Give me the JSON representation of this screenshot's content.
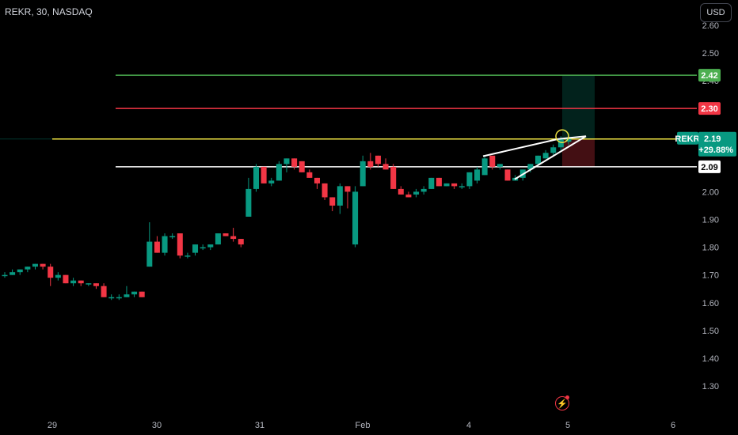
{
  "header": {
    "title": "REKR, 30, NASDAQ",
    "currency": "USD"
  },
  "colors": {
    "up": "#089981",
    "down": "#f23645",
    "green_line": "#4caf50",
    "red_line": "#f23645",
    "yellow_line": "#f0e442",
    "white_line": "#ffffff"
  },
  "price_axis": {
    "ticks": [
      "2.60",
      "2.50",
      "2.40",
      "2.30",
      "2.20",
      "2.10",
      "2.00",
      "1.90",
      "1.80",
      "1.70",
      "1.60",
      "1.50",
      "1.40",
      "1.30"
    ]
  },
  "time_axis": {
    "ticks": [
      "29",
      "30",
      "31",
      "Feb",
      "4",
      "5",
      "6"
    ]
  },
  "levels": {
    "target": "2.42",
    "stop": "2.30",
    "current_symbol": "REKR",
    "current_price": "2.19",
    "current_change": "+29.88%",
    "support": "2.09"
  },
  "chart_data": {
    "type": "candlestick",
    "symbol": "REKR",
    "interval": "30",
    "exchange": "NASDAQ",
    "ylim": [
      1.27,
      2.62
    ],
    "candles": [
      [
        1.7,
        1.71,
        1.69,
        1.7
      ],
      [
        1.7,
        1.72,
        1.7,
        1.71
      ],
      [
        1.71,
        1.72,
        1.7,
        1.72
      ],
      [
        1.72,
        1.73,
        1.71,
        1.73
      ],
      [
        1.73,
        1.74,
        1.72,
        1.74
      ],
      [
        1.74,
        1.74,
        1.72,
        1.73
      ],
      [
        1.73,
        1.74,
        1.66,
        1.69
      ],
      [
        1.69,
        1.71,
        1.68,
        1.7
      ],
      [
        1.7,
        1.7,
        1.67,
        1.67
      ],
      [
        1.67,
        1.69,
        1.66,
        1.68
      ],
      [
        1.68,
        1.68,
        1.66,
        1.67
      ],
      [
        1.67,
        1.67,
        1.66,
        1.67
      ],
      [
        1.67,
        1.67,
        1.65,
        1.66
      ],
      [
        1.66,
        1.67,
        1.62,
        1.62
      ],
      [
        1.62,
        1.63,
        1.61,
        1.62
      ],
      [
        1.62,
        1.63,
        1.61,
        1.62
      ],
      [
        1.62,
        1.66,
        1.62,
        1.63
      ],
      [
        1.63,
        1.64,
        1.62,
        1.64
      ],
      [
        1.64,
        1.64,
        1.62,
        1.62
      ],
      [
        1.73,
        1.89,
        1.73,
        1.82
      ],
      [
        1.82,
        1.84,
        1.78,
        1.78
      ],
      [
        1.78,
        1.85,
        1.77,
        1.84
      ],
      [
        1.84,
        1.85,
        1.83,
        1.84
      ],
      [
        1.85,
        1.85,
        1.76,
        1.77
      ],
      [
        1.77,
        1.78,
        1.76,
        1.77
      ],
      [
        1.78,
        1.81,
        1.77,
        1.81
      ],
      [
        1.8,
        1.81,
        1.79,
        1.8
      ],
      [
        1.8,
        1.81,
        1.79,
        1.81
      ],
      [
        1.81,
        1.85,
        1.81,
        1.85
      ],
      [
        1.85,
        1.85,
        1.84,
        1.84
      ],
      [
        1.84,
        1.87,
        1.82,
        1.83
      ],
      [
        1.83,
        1.83,
        1.8,
        1.81
      ],
      [
        1.91,
        2.05,
        1.91,
        2.01
      ],
      [
        2.01,
        2.1,
        2.0,
        2.09
      ],
      [
        2.09,
        2.09,
        2.03,
        2.03
      ],
      [
        2.03,
        2.05,
        2.02,
        2.04
      ],
      [
        2.04,
        2.11,
        2.04,
        2.1
      ],
      [
        2.1,
        2.12,
        2.07,
        2.12
      ],
      [
        2.12,
        2.12,
        2.08,
        2.09
      ],
      [
        2.11,
        2.11,
        2.07,
        2.07
      ],
      [
        2.07,
        2.08,
        2.05,
        2.05
      ],
      [
        2.05,
        2.05,
        2.01,
        2.03
      ],
      [
        2.03,
        2.03,
        1.97,
        1.98
      ],
      [
        1.98,
        1.98,
        1.93,
        1.95
      ],
      [
        1.95,
        2.03,
        1.92,
        2.02
      ],
      [
        2.02,
        2.02,
        1.94,
        2.0
      ],
      [
        1.81,
        2.02,
        1.8,
        2.0
      ],
      [
        2.02,
        2.13,
        2.02,
        2.11
      ],
      [
        2.11,
        2.14,
        2.08,
        2.09
      ],
      [
        2.13,
        2.13,
        2.09,
        2.1
      ],
      [
        2.1,
        2.12,
        2.08,
        2.08
      ],
      [
        2.09,
        2.1,
        2.01,
        2.01
      ],
      [
        2.01,
        2.02,
        1.99,
        1.99
      ],
      [
        1.99,
        2.0,
        1.98,
        1.98
      ],
      [
        1.99,
        2.01,
        1.98,
        2.0
      ],
      [
        2.0,
        2.02,
        1.99,
        2.01
      ],
      [
        2.01,
        2.05,
        2.01,
        2.05
      ],
      [
        2.05,
        2.05,
        2.02,
        2.02
      ],
      [
        2.02,
        2.03,
        2.02,
        2.03
      ],
      [
        2.03,
        2.03,
        2.01,
        2.02
      ],
      [
        2.02,
        2.03,
        2.01,
        2.02
      ],
      [
        2.02,
        2.07,
        2.01,
        2.07
      ],
      [
        2.04,
        2.09,
        2.03,
        2.08
      ],
      [
        2.06,
        2.13,
        2.06,
        2.12
      ],
      [
        2.13,
        2.13,
        2.08,
        2.09
      ],
      [
        2.09,
        2.1,
        2.08,
        2.1
      ],
      [
        2.08,
        2.08,
        2.04,
        2.04
      ],
      [
        2.04,
        2.06,
        2.04,
        2.05
      ],
      [
        2.05,
        2.08,
        2.04,
        2.08
      ],
      [
        2.08,
        2.1,
        2.07,
        2.1
      ],
      [
        2.1,
        2.13,
        2.1,
        2.13
      ],
      [
        2.12,
        2.15,
        2.12,
        2.14
      ],
      [
        2.14,
        2.17,
        2.13,
        2.16
      ],
      [
        2.16,
        2.2,
        2.15,
        2.19
      ],
      [
        2.18,
        2.21,
        2.17,
        2.19
      ]
    ],
    "horizontal_levels": [
      {
        "price": 2.42,
        "label": "2.42",
        "color": "#4caf50"
      },
      {
        "price": 2.3,
        "label": "2.30",
        "color": "#f23645"
      },
      {
        "price": 2.19,
        "label": "2.19",
        "color": "#f0e442"
      },
      {
        "price": 2.09,
        "label": "2.09",
        "color": "#ffffff"
      }
    ],
    "x_labels": [
      "29",
      "30",
      "31",
      "Feb",
      "4",
      "5",
      "6"
    ]
  }
}
